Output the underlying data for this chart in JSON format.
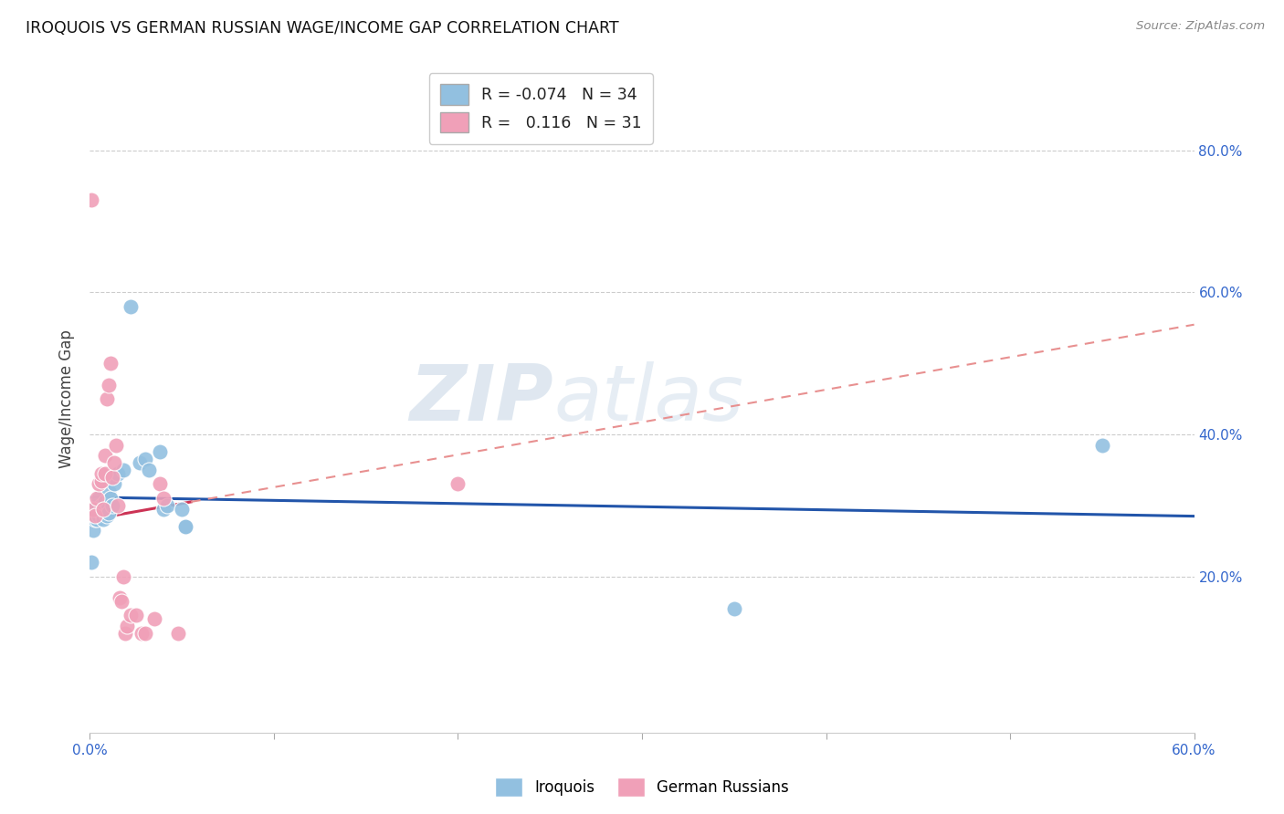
{
  "title": "IROQUOIS VS GERMAN RUSSIAN WAGE/INCOME GAP CORRELATION CHART",
  "source": "Source: ZipAtlas.com",
  "ylabel": "Wage/Income Gap",
  "xlim": [
    0.0,
    0.6
  ],
  "ylim": [
    -0.02,
    0.92
  ],
  "iroquois_R": "-0.074",
  "iroquois_N": "34",
  "german_russian_R": "0.116",
  "german_russian_N": "31",
  "iroquois_color": "#92c0e0",
  "german_russian_color": "#f0a0b8",
  "iroquois_line_color": "#2255aa",
  "german_russian_line_solid_color": "#cc3355",
  "german_russian_line_dash_color": "#e89090",
  "watermark_zip": "ZIP",
  "watermark_atlas": "atlas",
  "background_color": "#ffffff",
  "iroquois_x": [
    0.001,
    0.002,
    0.003,
    0.003,
    0.004,
    0.004,
    0.005,
    0.005,
    0.006,
    0.006,
    0.007,
    0.007,
    0.008,
    0.008,
    0.009,
    0.01,
    0.01,
    0.011,
    0.012,
    0.013,
    0.015,
    0.018,
    0.022,
    0.027,
    0.03,
    0.032,
    0.038,
    0.04,
    0.042,
    0.05,
    0.052,
    0.052,
    0.35,
    0.55
  ],
  "iroquois_y": [
    0.22,
    0.265,
    0.28,
    0.295,
    0.28,
    0.3,
    0.285,
    0.31,
    0.29,
    0.3,
    0.28,
    0.295,
    0.29,
    0.305,
    0.285,
    0.29,
    0.32,
    0.31,
    0.3,
    0.33,
    0.345,
    0.35,
    0.58,
    0.36,
    0.365,
    0.35,
    0.375,
    0.295,
    0.3,
    0.295,
    0.27,
    0.27,
    0.155,
    0.385
  ],
  "german_russian_x": [
    0.001,
    0.002,
    0.003,
    0.004,
    0.005,
    0.006,
    0.006,
    0.007,
    0.008,
    0.008,
    0.009,
    0.01,
    0.011,
    0.012,
    0.013,
    0.014,
    0.015,
    0.016,
    0.017,
    0.018,
    0.019,
    0.02,
    0.022,
    0.025,
    0.028,
    0.03,
    0.035,
    0.038,
    0.04,
    0.048,
    0.2
  ],
  "german_russian_y": [
    0.73,
    0.295,
    0.285,
    0.31,
    0.33,
    0.335,
    0.345,
    0.295,
    0.345,
    0.37,
    0.45,
    0.47,
    0.5,
    0.34,
    0.36,
    0.385,
    0.3,
    0.17,
    0.165,
    0.2,
    0.12,
    0.13,
    0.145,
    0.145,
    0.12,
    0.12,
    0.14,
    0.33,
    0.31,
    0.12,
    0.33
  ]
}
